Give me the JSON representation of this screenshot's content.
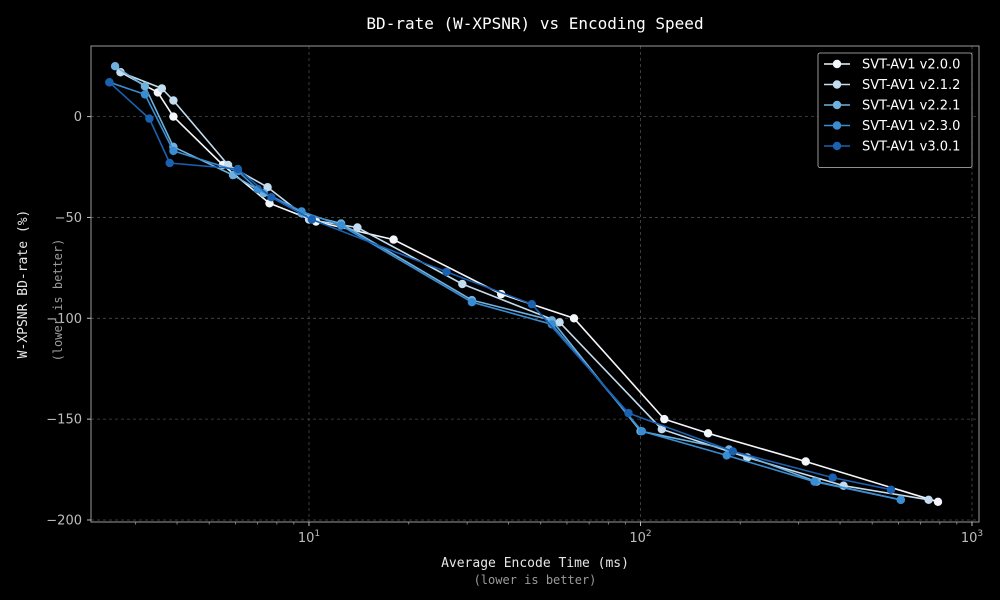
{
  "chart_data": {
    "type": "line",
    "title": "BD-rate (W-XPSNR) vs Encoding Speed",
    "xlabel": "Average Encode Time (ms)",
    "xlabel_note": "(lower is better)",
    "ylabel": "W-XPSNR BD-rate (%)",
    "ylabel_note": "(lower is better)",
    "x_scale": "log",
    "xlim": [
      2.2,
      1050
    ],
    "ylim": [
      -201,
      35
    ],
    "x_ticks": [
      {
        "value": 10,
        "base": "10",
        "exp": "1"
      },
      {
        "value": 100,
        "base": "10",
        "exp": "2"
      },
      {
        "value": 1000,
        "base": "10",
        "exp": "3"
      }
    ],
    "y_ticks": [
      0,
      -50,
      -100,
      -150,
      -200
    ],
    "grid": true,
    "legend_position": "top-right",
    "series": [
      {
        "name": "SVT-AV1 v2.0.0",
        "color": "#f3f7fb",
        "points": [
          [
            2.7,
            22
          ],
          [
            3.5,
            12
          ],
          [
            3.9,
            0
          ],
          [
            5.5,
            -24
          ],
          [
            7.6,
            -43
          ],
          [
            10.5,
            -52
          ],
          [
            18,
            -61
          ],
          [
            38,
            -88
          ],
          [
            63,
            -100
          ],
          [
            118,
            -150
          ],
          [
            160,
            -157
          ],
          [
            315,
            -171
          ],
          [
            790,
            -191
          ]
        ]
      },
      {
        "name": "SVT-AV1 v2.1.2",
        "color": "#c3dcef",
        "points": [
          [
            2.7,
            22
          ],
          [
            3.6,
            14
          ],
          [
            3.9,
            8
          ],
          [
            5.7,
            -24
          ],
          [
            7.5,
            -35
          ],
          [
            10,
            -51
          ],
          [
            14,
            -55
          ],
          [
            29,
            -83
          ],
          [
            57,
            -102
          ],
          [
            116,
            -155
          ],
          [
            210,
            -169
          ],
          [
            410,
            -183
          ],
          [
            740,
            -190
          ]
        ]
      },
      {
        "name": "SVT-AV1 v2.2.1",
        "color": "#6fb1de",
        "points": [
          [
            2.6,
            25
          ],
          [
            3.2,
            15
          ],
          [
            3.9,
            -15
          ],
          [
            5.9,
            -29
          ],
          [
            7.3,
            -38
          ],
          [
            9.5,
            -48
          ],
          [
            12.5,
            -53
          ],
          [
            31,
            -91
          ],
          [
            54,
            -101
          ],
          [
            100,
            -156
          ],
          [
            185,
            -165
          ],
          [
            340,
            -181
          ],
          [
            610,
            -190
          ]
        ]
      },
      {
        "name": "SVT-AV1 v2.3.0",
        "color": "#3a8dd0",
        "points": [
          [
            2.5,
            17
          ],
          [
            3.2,
            11
          ],
          [
            3.9,
            -17
          ],
          [
            6.1,
            -27
          ],
          [
            7.0,
            -36
          ],
          [
            9.5,
            -47
          ],
          [
            12.5,
            -54
          ],
          [
            31,
            -92
          ],
          [
            54,
            -103
          ],
          [
            101,
            -156
          ],
          [
            182,
            -168
          ],
          [
            335,
            -181
          ],
          [
            610,
            -190
          ]
        ]
      },
      {
        "name": "SVT-AV1 v3.0.1",
        "color": "#1a62b0",
        "points": [
          [
            2.5,
            17
          ],
          [
            3.3,
            -1
          ],
          [
            3.8,
            -23
          ],
          [
            6.1,
            -26
          ],
          [
            7.7,
            -40
          ],
          [
            10.2,
            -51
          ],
          [
            26,
            -77
          ],
          [
            47,
            -93
          ],
          [
            92,
            -147
          ],
          [
            190,
            -166
          ],
          [
            380,
            -179
          ],
          [
            570,
            -185
          ]
        ]
      }
    ]
  }
}
